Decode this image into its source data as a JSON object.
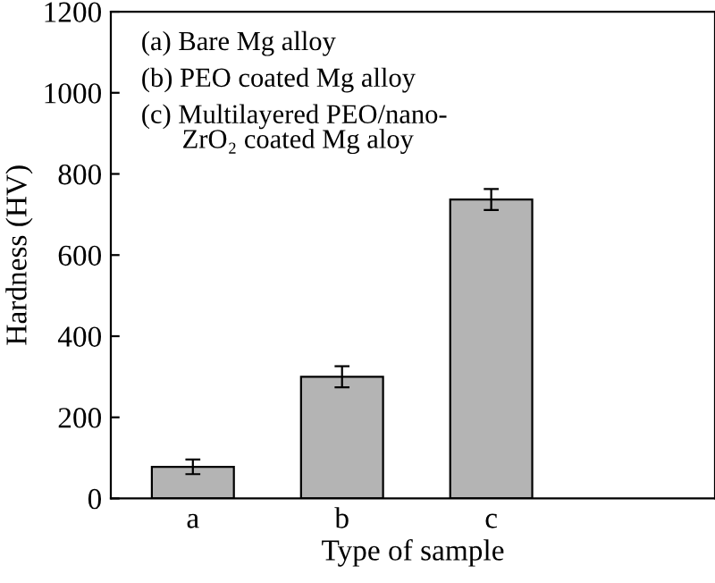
{
  "chart_data": {
    "type": "bar",
    "xlabel": "Type of sample",
    "ylabel": "Hardness (HV)",
    "categories": [
      "a",
      "b",
      "c"
    ],
    "values": [
      78,
      300,
      737
    ],
    "errors": [
      18,
      26,
      26
    ],
    "color": "#b4b4b4",
    "ylim": [
      0,
      1200
    ],
    "yticks": [
      0,
      200,
      400,
      600,
      800,
      1000,
      1200
    ],
    "annotations": [
      "(a) Bare Mg alloy",
      "(b) PEO coated Mg alloy",
      "(c) Multilayered PEO/nano-\nZrO₂ coated Mg aloy"
    ],
    "grid": false,
    "legend": false
  }
}
